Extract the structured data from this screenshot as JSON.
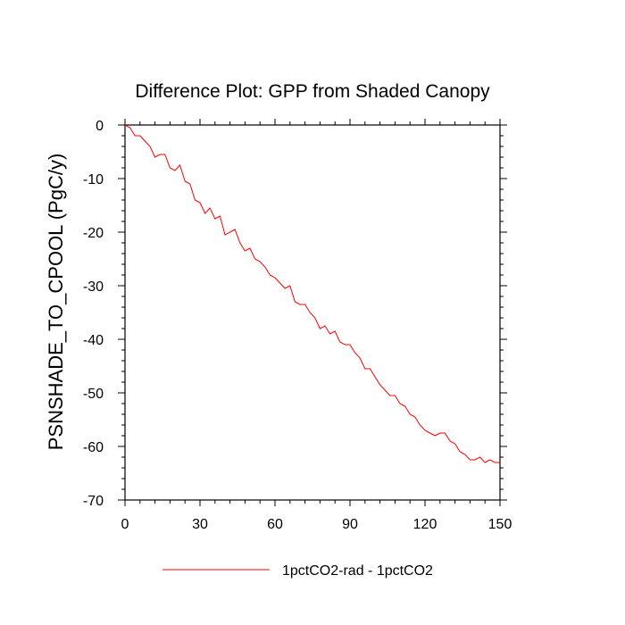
{
  "chart_data": {
    "type": "line",
    "title": "Difference Plot: GPP from Shaded Canopy",
    "xlabel": "",
    "ylabel": "PSNSHADE_TO_CPOOL  (PgC/y)",
    "xlim": [
      0,
      150
    ],
    "ylim": [
      -70,
      0
    ],
    "xticks": [
      0,
      30,
      60,
      90,
      120,
      150
    ],
    "yticks": [
      0,
      -10,
      -20,
      -30,
      -40,
      -50,
      -60,
      -70
    ],
    "grid": false,
    "legend_position": "bottom-center",
    "series": [
      {
        "name": "1pctCO2-rad - 1pctCO2",
        "color": "#ff0000",
        "x": [
          0,
          2,
          4,
          6,
          8,
          10,
          12,
          14,
          16,
          18,
          20,
          22,
          24,
          26,
          28,
          30,
          32,
          34,
          36,
          38,
          40,
          42,
          44,
          46,
          48,
          50,
          52,
          54,
          56,
          58,
          60,
          62,
          64,
          66,
          68,
          70,
          72,
          74,
          76,
          78,
          80,
          82,
          84,
          86,
          88,
          90,
          92,
          94,
          96,
          98,
          100,
          102,
          104,
          106,
          108,
          110,
          112,
          114,
          116,
          118,
          120,
          122,
          124,
          126,
          128,
          130,
          132,
          134,
          136,
          138,
          140,
          142,
          144,
          146,
          148,
          150
        ],
        "values": [
          0,
          -0.5,
          -2,
          -2,
          -3,
          -4,
          -6,
          -5.5,
          -5.5,
          -8,
          -8.5,
          -7.5,
          -10.5,
          -11,
          -14,
          -14.5,
          -16.5,
          -15.5,
          -17.5,
          -17,
          -20.5,
          -20,
          -19.5,
          -22,
          -23.5,
          -23,
          -25,
          -25.5,
          -26.5,
          -28,
          -28.5,
          -29.5,
          -30.5,
          -30,
          -33,
          -33.5,
          -33.5,
          -35,
          -36,
          -38,
          -37.5,
          -39,
          -38.5,
          -40.5,
          -41,
          -41,
          -42.5,
          -43.5,
          -45.5,
          -45.5,
          -47,
          -48.5,
          -49.5,
          -50.5,
          -50.5,
          -52,
          -52.5,
          -54,
          -54.5,
          -56,
          -57,
          -57.5,
          -58,
          -57.5,
          -57.5,
          -59,
          -59.5,
          -61,
          -61.5,
          -62.5,
          -62.5,
          -62,
          -63,
          -62.5,
          -63,
          -63
        ]
      }
    ]
  }
}
